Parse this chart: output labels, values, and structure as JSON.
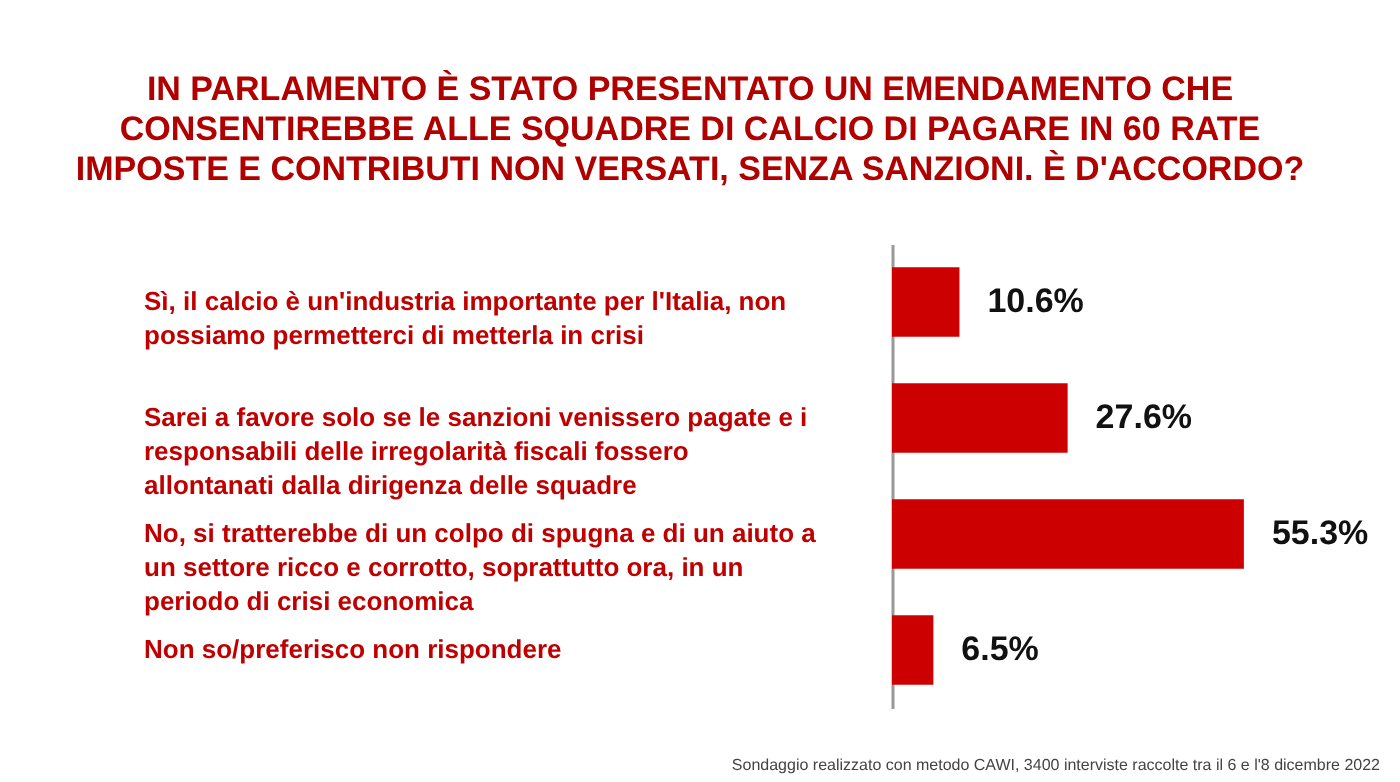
{
  "chart_data": {
    "type": "bar",
    "orientation": "horizontal",
    "title": [
      "IN PARLAMENTO È STATO PRESENTATO UN EMENDAMENTO CHE",
      "CONSENTIREBBE ALLE SQUADRE DI CALCIO DI PAGARE IN 60 RATE",
      "IMPOSTE E CONTRIBUTI NON VERSATI, SENZA SANZIONI. È D'ACCORDO?"
    ],
    "categories": [
      "Sì, il calcio è un'industria importante per l'Italia, non possiamo permetterci di metterla in crisi",
      "Sarei a favore solo se le sanzioni venissero pagate e i responsabili delle irregolarità  fiscali fossero allontanati dalla dirigenza delle squadre",
      "No, si tratterebbe di un colpo di spugna e di un aiuto a un settore ricco e corrotto, soprattutto ora, in un periodo di crisi economica",
      "Non so/preferisco non rispondere"
    ],
    "values": [
      10.6,
      27.6,
      55.3,
      6.5
    ],
    "value_labels": [
      "10.6%",
      "27.6%",
      "55.3%",
      "6.5%"
    ],
    "color": "#cc0000",
    "annotations": [
      "Sondaggio realizzato con metodo CAWI, 3400 interviste raccolte tra il 6 e l'8 dicembre 2022"
    ]
  }
}
